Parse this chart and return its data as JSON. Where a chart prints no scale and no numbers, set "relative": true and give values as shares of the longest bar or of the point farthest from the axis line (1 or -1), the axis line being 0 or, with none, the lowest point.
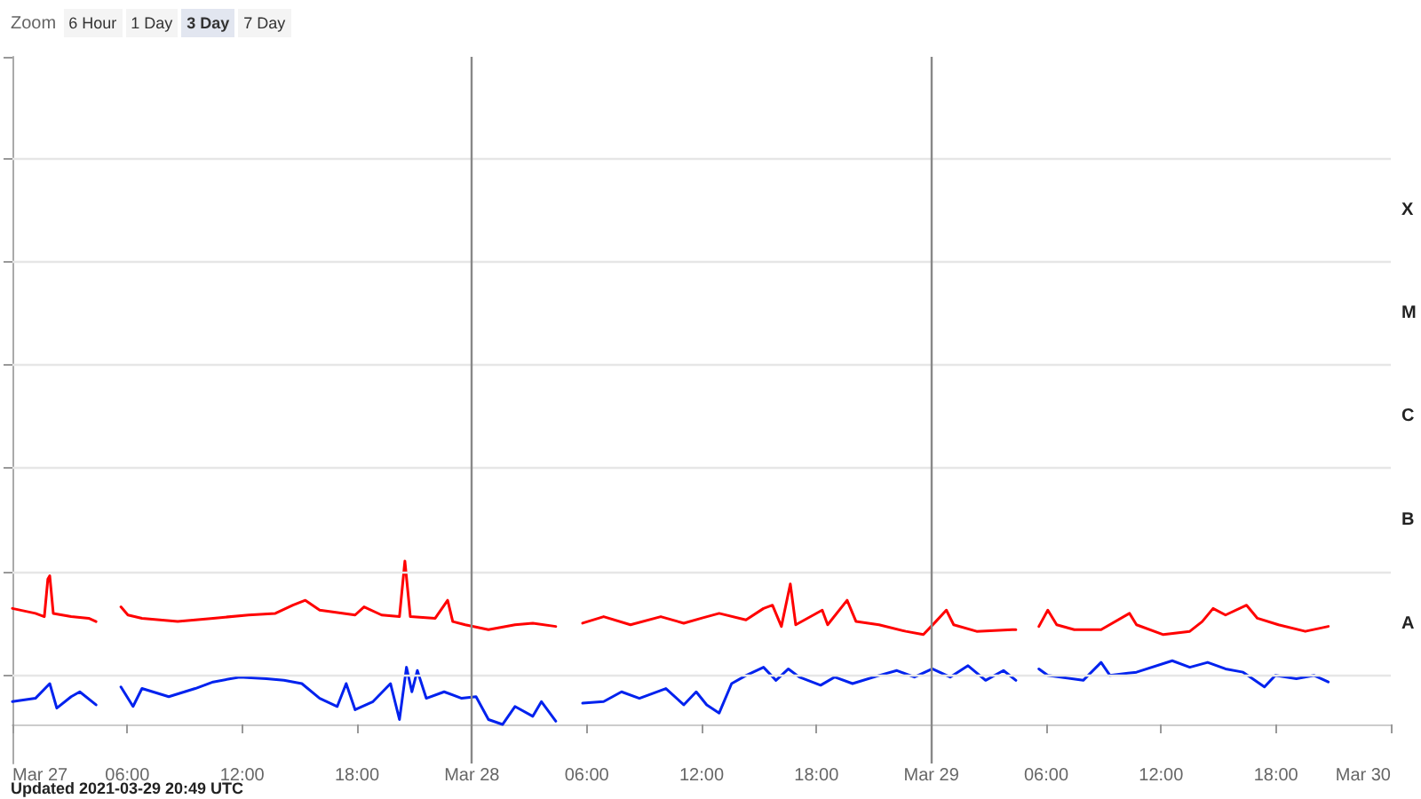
{
  "chart_data": {
    "type": "line",
    "relative": true,
    "series": [
      {
        "color": "#ff0000",
        "x": [
          "2021-03-27T00:00",
          "2021-03-27T01:12",
          "2021-03-27T01:40",
          "2021-03-27T01:51",
          "2021-03-27T01:57",
          "2021-03-27T02:08",
          "2021-03-27T03:04",
          "2021-03-27T03:59",
          "2021-03-27T04:22",
          "2021-03-27T05:00",
          "2021-03-27T05:40",
          "2021-03-27T06:02",
          "2021-03-27T06:46",
          "2021-03-27T08:38",
          "2021-03-27T10:29",
          "2021-03-27T12:20",
          "2021-03-27T13:44",
          "2021-03-27T14:39",
          "2021-03-27T15:18",
          "2021-03-27T16:03",
          "2021-03-27T17:54",
          "2021-03-27T18:22",
          "2021-03-27T19:17",
          "2021-03-27T20:13",
          "2021-03-27T20:30",
          "2021-03-27T20:47",
          "2021-03-27T22:05",
          "2021-03-27T22:44",
          "2021-03-27T23:00",
          "2021-03-27T23:39",
          "2021-03-28T00:52",
          "2021-03-28T02:15",
          "2021-03-28T03:11",
          "2021-03-28T04:23",
          "2021-03-28T05:05",
          "2021-03-28T05:47",
          "2021-03-28T06:53",
          "2021-03-28T08:17",
          "2021-03-28T09:52",
          "2021-03-28T11:04",
          "2021-03-28T11:59",
          "2021-03-28T12:55",
          "2021-03-28T14:19",
          "2021-03-28T15:14",
          "2021-03-28T15:42",
          "2021-03-28T16:10",
          "2021-03-28T16:38",
          "2021-03-28T16:55",
          "2021-03-28T18:18",
          "2021-03-28T18:35",
          "2021-03-28T19:36",
          "2021-03-28T20:04",
          "2021-03-28T21:16",
          "2021-03-28T22:40",
          "2021-03-28T23:35",
          "2021-03-29T00:14",
          "2021-03-29T00:47",
          "2021-03-29T01:10",
          "2021-03-29T02:22",
          "2021-03-29T04:14",
          "2021-03-29T04:25",
          "2021-03-29T05:00",
          "2021-03-29T05:37",
          "2021-03-29T06:05",
          "2021-03-29T06:33",
          "2021-03-29T07:28",
          "2021-03-29T08:52",
          "2021-03-29T10:21",
          "2021-03-29T10:43",
          "2021-03-29T12:07",
          "2021-03-29T13:30",
          "2021-03-29T14:09",
          "2021-03-29T14:43",
          "2021-03-29T15:22",
          "2021-03-29T16:28",
          "2021-03-29T17:02",
          "2021-03-29T18:08",
          "2021-03-29T19:32",
          "2021-03-29T20:44"
        ],
        "values": [
          0.71,
          0.68,
          0.66,
          0.89,
          0.91,
          0.68,
          0.66,
          0.65,
          0.63,
          null,
          0.72,
          0.67,
          0.65,
          0.63,
          0.65,
          0.67,
          0.68,
          0.73,
          0.76,
          0.7,
          0.67,
          0.72,
          0.67,
          0.66,
          1.0,
          0.66,
          0.65,
          0.76,
          0.63,
          0.61,
          0.58,
          0.61,
          0.62,
          0.6,
          null,
          0.62,
          0.66,
          0.61,
          0.66,
          0.62,
          0.65,
          0.68,
          0.64,
          0.71,
          0.73,
          0.6,
          0.86,
          0.61,
          0.7,
          0.61,
          0.76,
          0.63,
          0.61,
          0.57,
          0.55,
          0.63,
          0.7,
          0.61,
          0.57,
          0.58,
          0.58,
          null,
          0.6,
          0.7,
          0.61,
          0.58,
          0.58,
          0.68,
          0.61,
          0.55,
          0.57,
          0.63,
          0.71,
          0.67,
          0.73,
          0.65,
          0.61,
          0.57,
          0.6
        ]
      },
      {
        "color": "#0022ee",
        "x": [
          "2021-03-27T00:00",
          "2021-03-27T01:12",
          "2021-03-27T01:57",
          "2021-03-27T02:19",
          "2021-03-27T03:04",
          "2021-03-27T03:31",
          "2021-03-27T04:22",
          "2021-03-27T05:00",
          "2021-03-27T05:40",
          "2021-03-27T06:18",
          "2021-03-27T06:46",
          "2021-03-27T08:10",
          "2021-03-27T09:33",
          "2021-03-27T10:29",
          "2021-03-27T11:52",
          "2021-03-27T13:16",
          "2021-03-27T14:11",
          "2021-03-27T15:07",
          "2021-03-27T16:03",
          "2021-03-27T16:58",
          "2021-03-27T17:26",
          "2021-03-27T17:54",
          "2021-03-27T18:50",
          "2021-03-27T19:45",
          "2021-03-27T20:13",
          "2021-03-27T20:35",
          "2021-03-27T20:52",
          "2021-03-27T21:09",
          "2021-03-27T21:37",
          "2021-03-27T22:33",
          "2021-03-27T23:28",
          "2021-03-28T00:13",
          "2021-03-28T00:52",
          "2021-03-28T01:36",
          "2021-03-28T02:15",
          "2021-03-28T03:11",
          "2021-03-28T03:38",
          "2021-03-28T04:23",
          "2021-03-28T05:05",
          "2021-03-28T05:47",
          "2021-03-28T06:53",
          "2021-03-28T07:49",
          "2021-03-28T08:45",
          "2021-03-28T10:08",
          "2021-03-28T11:04",
          "2021-03-28T11:43",
          "2021-03-28T12:16",
          "2021-03-28T12:55",
          "2021-03-28T13:34",
          "2021-03-28T14:19",
          "2021-03-28T15:14",
          "2021-03-28T15:53",
          "2021-03-28T16:32",
          "2021-03-28T17:06",
          "2021-03-28T18:13",
          "2021-03-28T18:57",
          "2021-03-28T19:53",
          "2021-03-28T21:16",
          "2021-03-28T22:12",
          "2021-03-28T23:07",
          "2021-03-29T00:03",
          "2021-03-29T00:59",
          "2021-03-29T01:55",
          "2021-03-29T02:50",
          "2021-03-29T03:46",
          "2021-03-29T04:25",
          "2021-03-29T05:00",
          "2021-03-29T05:37",
          "2021-03-29T06:05",
          "2021-03-29T07:56",
          "2021-03-29T08:52",
          "2021-03-29T09:20",
          "2021-03-29T10:43",
          "2021-03-29T12:35",
          "2021-03-29T13:30",
          "2021-03-29T14:26",
          "2021-03-29T15:22",
          "2021-03-29T16:17",
          "2021-03-29T17:24",
          "2021-03-29T17:58",
          "2021-03-29T19:04",
          "2021-03-29T20:00",
          "2021-03-29T20:44"
        ],
        "values": [
          0.14,
          0.16,
          0.25,
          0.1,
          0.17,
          0.2,
          0.12,
          null,
          0.23,
          0.11,
          0.22,
          0.17,
          0.22,
          0.26,
          0.29,
          0.28,
          0.27,
          0.25,
          0.16,
          0.11,
          0.25,
          0.09,
          0.14,
          0.25,
          0.03,
          0.35,
          0.2,
          0.33,
          0.16,
          0.2,
          0.16,
          0.17,
          0.03,
          0.0,
          0.11,
          0.05,
          0.14,
          0.02,
          null,
          0.13,
          0.14,
          0.2,
          0.16,
          0.22,
          0.12,
          0.2,
          0.12,
          0.07,
          0.25,
          0.3,
          0.35,
          0.27,
          0.34,
          0.29,
          0.24,
          0.29,
          0.25,
          0.3,
          0.33,
          0.29,
          0.34,
          0.29,
          0.36,
          0.27,
          0.33,
          0.27,
          null,
          0.34,
          0.3,
          0.27,
          0.38,
          0.3,
          0.32,
          0.39,
          0.35,
          0.38,
          0.34,
          0.32,
          0.23,
          0.3,
          0.28,
          0.3,
          0.26
        ]
      }
    ],
    "xlim": [
      "2021-03-27T00:00",
      "2021-03-30T00:00"
    ],
    "xticks": [
      {
        "value": "2021-03-27T00:00",
        "label": "Mar 27"
      },
      {
        "value": "2021-03-27T06:00",
        "label": "06:00"
      },
      {
        "value": "2021-03-27T12:00",
        "label": "12:00"
      },
      {
        "value": "2021-03-27T18:00",
        "label": "18:00"
      },
      {
        "value": "2021-03-28T00:00",
        "label": "Mar 28"
      },
      {
        "value": "2021-03-28T06:00",
        "label": "06:00"
      },
      {
        "value": "2021-03-28T12:00",
        "label": "12:00"
      },
      {
        "value": "2021-03-28T18:00",
        "label": "18:00"
      },
      {
        "value": "2021-03-29T00:00",
        "label": "Mar 29"
      },
      {
        "value": "2021-03-29T06:00",
        "label": "06:00"
      },
      {
        "value": "2021-03-29T12:00",
        "label": "12:00"
      },
      {
        "value": "2021-03-29T18:00",
        "label": "18:00"
      },
      {
        "value": "2021-03-30T00:00",
        "label": "Mar 30"
      }
    ],
    "ref_lines": [
      {
        "axis": "y",
        "value": 0.3,
        "label": null,
        "color": "#e6e6e6"
      },
      {
        "axis": "y",
        "value": 0.93,
        "label": null,
        "color": "#e6e6e6"
      },
      {
        "axis": "y",
        "value": 1.57,
        "label": null,
        "color": "#e6e6e6"
      },
      {
        "axis": "y",
        "value": 2.2,
        "label": null,
        "color": "#e6e6e6"
      },
      {
        "axis": "y",
        "value": 2.83,
        "label": null,
        "color": "#e6e6e6"
      },
      {
        "axis": "y",
        "value": 3.46,
        "label": null,
        "color": "#e6e6e6"
      },
      {
        "axis": "x",
        "value": "2021-03-28T00:00",
        "label": null,
        "color": "#888888"
      },
      {
        "axis": "x",
        "value": "2021-03-29T00:00",
        "label": null,
        "color": "#888888"
      }
    ],
    "marker": "none",
    "line_style": "solid",
    "annotations": [
      "Zoom",
      "6 Hour",
      "1 Day",
      "3 Day",
      "7 Day",
      "X",
      "M",
      "C",
      "B",
      "A",
      "Updated 2021-03-29 20:49 UTC"
    ]
  }
}
